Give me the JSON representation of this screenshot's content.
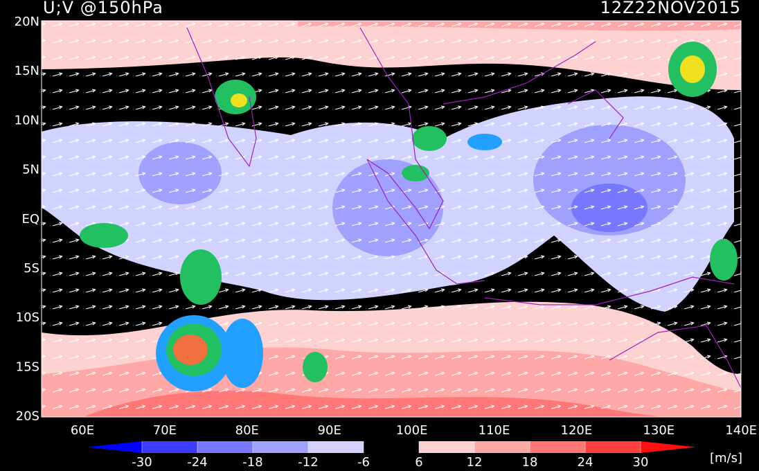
{
  "title": "U;V @150hPa",
  "time": "12Z22NOV2015",
  "lat_labels": [
    "20N",
    "15N",
    "10N",
    "5N",
    "EQ",
    "5S",
    "10S",
    "15S",
    "20S"
  ],
  "lon_labels": [
    "60E",
    "70E",
    "80E",
    "90E",
    "100E",
    "110E",
    "120E",
    "130E",
    "140E"
  ],
  "colorbar": {
    "ticks": [
      -30,
      -24,
      -18,
      -12,
      -6,
      6,
      12,
      18,
      24,
      30
    ],
    "colors": [
      "#0000ff",
      "#3c3cff",
      "#7878ff",
      "#a0a0ff",
      "#d2d2ff",
      "#000000",
      "#ffd2d2",
      "#ffa8a8",
      "#ff7878",
      "#ff4040",
      "#ff1010"
    ],
    "units": "[m/s]"
  }
}
